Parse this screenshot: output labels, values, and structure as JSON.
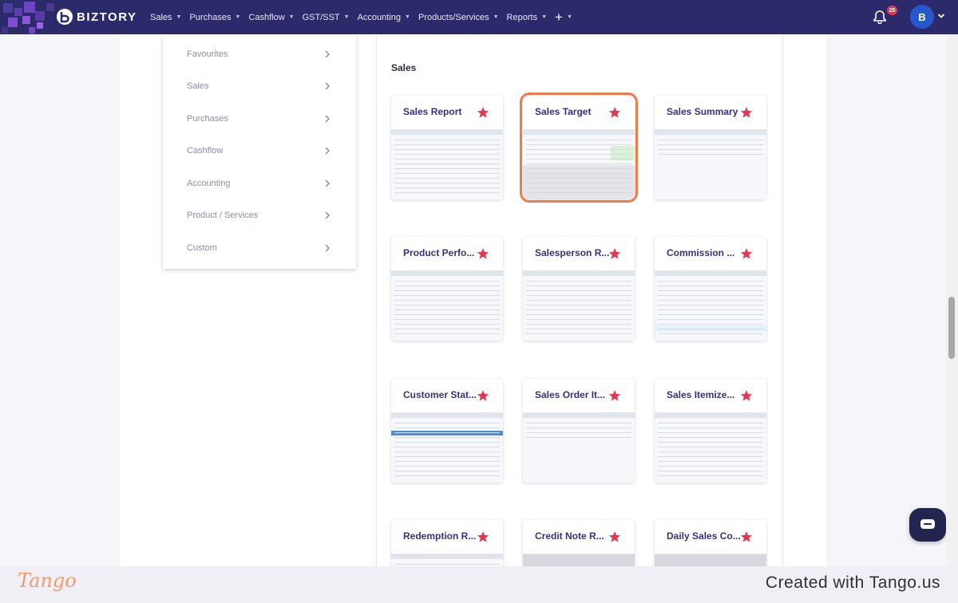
{
  "app": {
    "brand_name": "BIZTORY",
    "accent": "#2b2a6b",
    "highlight": "#f27a4a",
    "star_color": "#e8344e"
  },
  "nav": {
    "items": [
      {
        "label": "Sales"
      },
      {
        "label": "Purchases"
      },
      {
        "label": "Cashflow"
      },
      {
        "label": "GST/SST"
      },
      {
        "label": "Accounting"
      },
      {
        "label": "Products/Services"
      },
      {
        "label": "Reports"
      }
    ],
    "add_label": "+",
    "notification_count": "25",
    "avatar_initial": "B"
  },
  "categories": [
    {
      "label": "Favourites"
    },
    {
      "label": "Sales"
    },
    {
      "label": "Purchases"
    },
    {
      "label": "Cashflow"
    },
    {
      "label": "Accounting"
    },
    {
      "label": "Product / Services"
    },
    {
      "label": "Custom"
    }
  ],
  "section": {
    "title": "Sales"
  },
  "reports": [
    {
      "title": "Sales Report",
      "favourite": true,
      "active": false
    },
    {
      "title": "Sales Target",
      "favourite": true,
      "active": true
    },
    {
      "title": "Sales Summary",
      "favourite": true,
      "active": false
    },
    {
      "title": "Product Perfo...",
      "favourite": true,
      "active": false
    },
    {
      "title": "Salesperson R...",
      "favourite": true,
      "active": false
    },
    {
      "title": "Commission ...",
      "favourite": true,
      "active": false
    },
    {
      "title": "Customer Stat...",
      "favourite": true,
      "active": false
    },
    {
      "title": "Sales Order It...",
      "favourite": true,
      "active": false
    },
    {
      "title": "Sales Itemize...",
      "favourite": true,
      "active": false
    },
    {
      "title": "Redemption R...",
      "favourite": true,
      "active": false
    },
    {
      "title": "Credit Note R...",
      "favourite": true,
      "active": false
    },
    {
      "title": "Daily Sales Co...",
      "favourite": true,
      "active": false
    }
  ],
  "footer": {
    "logo_text": "Tango",
    "credit": "Created with Tango.us"
  }
}
